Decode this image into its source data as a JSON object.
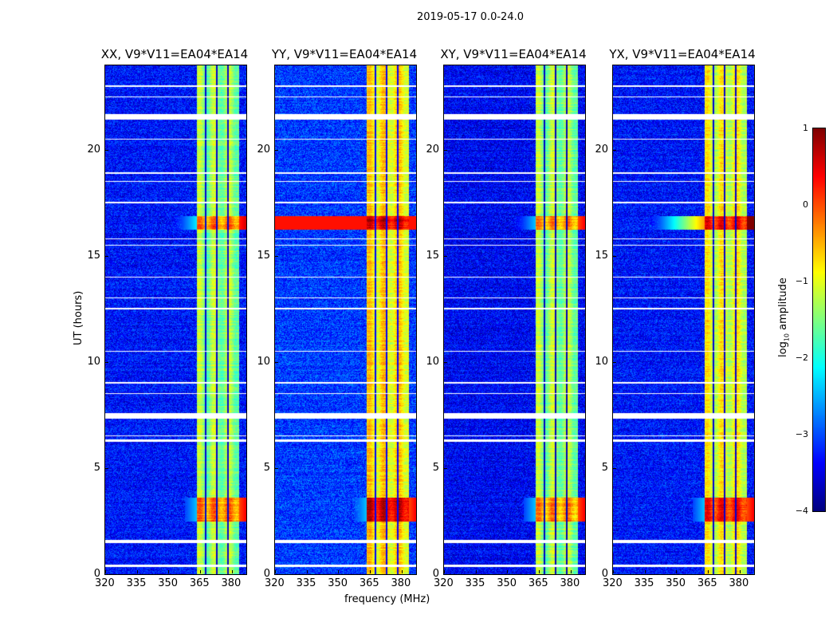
{
  "chart_data": {
    "type": "heatmap",
    "title": "2019-05-17 0.0-24.0",
    "xlabel": "frequency (MHz)",
    "ylabel": "UT (hours)",
    "xlim": [
      320,
      387
    ],
    "ylim": [
      0,
      24
    ],
    "xticks": [
      320,
      335,
      350,
      365,
      380
    ],
    "yticks": [
      0,
      5,
      10,
      15,
      20
    ],
    "colormap": "jet",
    "colorbar": {
      "label": "log10 amplitude",
      "label_base": "log",
      "label_sub": "10",
      "label_rest": " amplitude",
      "range": [
        -4,
        1
      ],
      "ticks": [
        1,
        0,
        -1,
        -2,
        -3,
        -4
      ],
      "tick_labels": [
        "1",
        "0",
        "−1",
        "−2",
        "−3",
        "−4"
      ]
    },
    "band_mhz": [
      363.5,
      383.5
    ],
    "subband_gaps_mhz": [
      367.8,
      373.0,
      378.2
    ],
    "flagged_hours": [
      [
        0.35,
        0.45
      ],
      [
        1.45,
        1.62
      ],
      [
        6.25,
        6.35
      ],
      [
        6.5,
        6.55
      ],
      [
        7.35,
        7.6
      ],
      [
        8.5,
        8.55
      ],
      [
        9.0,
        9.05
      ],
      [
        10.5,
        10.55
      ],
      [
        12.5,
        12.55
      ],
      [
        13.0,
        13.05
      ],
      [
        14.0,
        14.05
      ],
      [
        15.5,
        15.55
      ],
      [
        15.8,
        15.85
      ],
      [
        17.5,
        17.55
      ],
      [
        18.5,
        18.55
      ],
      [
        18.9,
        18.95
      ],
      [
        20.5,
        20.55
      ],
      [
        21.45,
        21.7
      ],
      [
        22.5,
        22.55
      ],
      [
        23.0,
        23.05
      ]
    ],
    "events_hours": [
      [
        2.5,
        3.6
      ],
      [
        16.25,
        16.9
      ]
    ],
    "panels": [
      {
        "title": "XX, V9*V11=EA04*EA14",
        "background_level": -3.3,
        "band_level": -1.4,
        "event_boost": 1.1,
        "event_broadband_level": -2.2
      },
      {
        "title": "YY, V9*V11=EA04*EA14",
        "background_level": -3.1,
        "band_level": -0.8,
        "event_boost": 1.3,
        "event_broadband_level": 0.3
      },
      {
        "title": "XY, V9*V11=EA04*EA14",
        "background_level": -3.4,
        "band_level": -1.4,
        "event_boost": 1.0,
        "event_broadband_level": -2.4
      },
      {
        "title": "YX, V9*V11=EA04*EA14",
        "background_level": -3.3,
        "band_level": -1.0,
        "event_boost": 1.2,
        "event_broadband_level": -0.4
      }
    ]
  }
}
